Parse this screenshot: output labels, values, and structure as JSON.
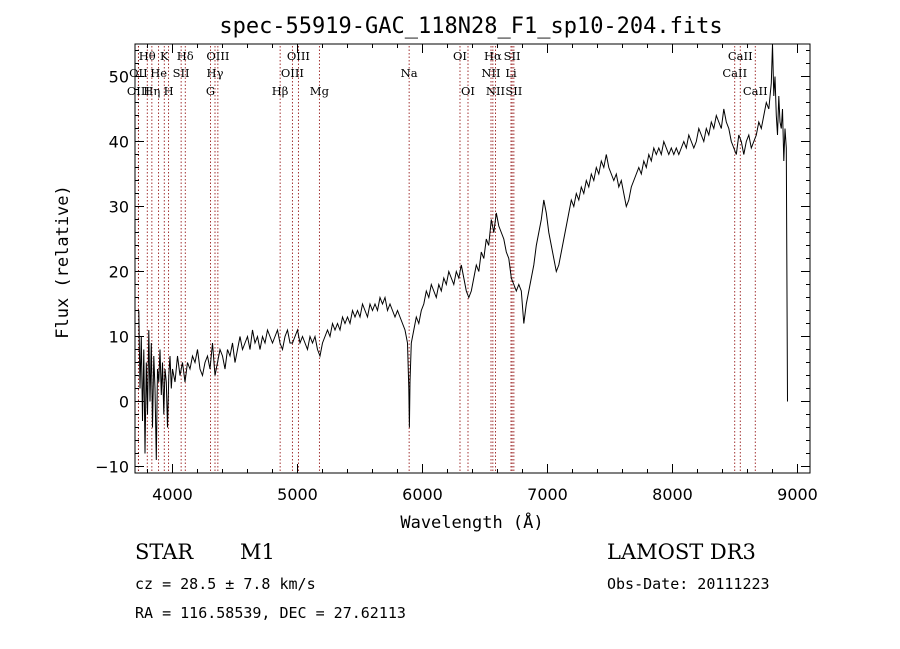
{
  "chart_data": {
    "type": "line",
    "title": "spec-55919-GAC_118N28_F1_sp10-204.fits",
    "xlabel": "Wavelength (Å)",
    "ylabel": "Flux (relative)",
    "xlim": [
      3700,
      9100
    ],
    "ylim": [
      -11,
      55
    ],
    "xticks": [
      4000,
      5000,
      6000,
      7000,
      8000,
      9000
    ],
    "yticks": [
      -10,
      0,
      10,
      20,
      30,
      40,
      50
    ],
    "line_color": "#000000",
    "marker_color": "#8b0000",
    "series": [
      {
        "name": "flux",
        "points": [
          [
            3730,
            14
          ],
          [
            3740,
            2
          ],
          [
            3750,
            10
          ],
          [
            3760,
            -3
          ],
          [
            3770,
            8
          ],
          [
            3780,
            -8
          ],
          [
            3790,
            6
          ],
          [
            3800,
            -2
          ],
          [
            3810,
            11
          ],
          [
            3820,
            0
          ],
          [
            3830,
            9
          ],
          [
            3840,
            -4
          ],
          [
            3850,
            7
          ],
          [
            3860,
            2
          ],
          [
            3870,
            -9
          ],
          [
            3880,
            5
          ],
          [
            3890,
            3
          ],
          [
            3900,
            8
          ],
          [
            3910,
            1
          ],
          [
            3920,
            6
          ],
          [
            3930,
            -2
          ],
          [
            3940,
            5
          ],
          [
            3950,
            3
          ],
          [
            3960,
            -4
          ],
          [
            3970,
            4
          ],
          [
            3980,
            7
          ],
          [
            3990,
            2
          ],
          [
            4000,
            5
          ],
          [
            4020,
            3
          ],
          [
            4040,
            7
          ],
          [
            4060,
            4
          ],
          [
            4080,
            6
          ],
          [
            4100,
            3
          ],
          [
            4120,
            6
          ],
          [
            4140,
            5
          ],
          [
            4160,
            7
          ],
          [
            4180,
            6
          ],
          [
            4200,
            8
          ],
          [
            4220,
            5
          ],
          [
            4240,
            4
          ],
          [
            4260,
            6
          ],
          [
            4280,
            7
          ],
          [
            4300,
            5
          ],
          [
            4320,
            9
          ],
          [
            4340,
            4
          ],
          [
            4360,
            6
          ],
          [
            4380,
            8
          ],
          [
            4400,
            7
          ],
          [
            4420,
            5
          ],
          [
            4440,
            8
          ],
          [
            4460,
            7
          ],
          [
            4480,
            9
          ],
          [
            4500,
            6
          ],
          [
            4520,
            8
          ],
          [
            4540,
            10
          ],
          [
            4560,
            8
          ],
          [
            4580,
            9
          ],
          [
            4600,
            10
          ],
          [
            4620,
            8
          ],
          [
            4640,
            11
          ],
          [
            4660,
            9
          ],
          [
            4680,
            10
          ],
          [
            4700,
            8
          ],
          [
            4720,
            10
          ],
          [
            4740,
            9
          ],
          [
            4760,
            11
          ],
          [
            4780,
            10
          ],
          [
            4800,
            9
          ],
          [
            4820,
            10
          ],
          [
            4840,
            11
          ],
          [
            4860,
            9
          ],
          [
            4880,
            8
          ],
          [
            4900,
            10
          ],
          [
            4920,
            11
          ],
          [
            4940,
            9
          ],
          [
            4960,
            9
          ],
          [
            4980,
            10
          ],
          [
            5000,
            11
          ],
          [
            5020,
            9
          ],
          [
            5040,
            10
          ],
          [
            5060,
            9
          ],
          [
            5080,
            8
          ],
          [
            5100,
            10
          ],
          [
            5120,
            9
          ],
          [
            5140,
            10
          ],
          [
            5160,
            8
          ],
          [
            5180,
            7
          ],
          [
            5200,
            9
          ],
          [
            5220,
            10
          ],
          [
            5240,
            11
          ],
          [
            5260,
            10
          ],
          [
            5280,
            12
          ],
          [
            5300,
            11
          ],
          [
            5320,
            12
          ],
          [
            5340,
            11
          ],
          [
            5360,
            13
          ],
          [
            5380,
            12
          ],
          [
            5400,
            13
          ],
          [
            5420,
            12
          ],
          [
            5440,
            14
          ],
          [
            5460,
            13
          ],
          [
            5480,
            14
          ],
          [
            5500,
            13
          ],
          [
            5520,
            15
          ],
          [
            5540,
            14
          ],
          [
            5560,
            13
          ],
          [
            5580,
            15
          ],
          [
            5600,
            14
          ],
          [
            5620,
            15
          ],
          [
            5640,
            14
          ],
          [
            5660,
            16
          ],
          [
            5680,
            15
          ],
          [
            5700,
            16
          ],
          [
            5720,
            14
          ],
          [
            5740,
            15
          ],
          [
            5760,
            14
          ],
          [
            5780,
            13
          ],
          [
            5800,
            14
          ],
          [
            5820,
            13
          ],
          [
            5840,
            12
          ],
          [
            5860,
            11
          ],
          [
            5880,
            9
          ],
          [
            5890,
            2
          ],
          [
            5895,
            -4
          ],
          [
            5900,
            3
          ],
          [
            5910,
            9
          ],
          [
            5930,
            11
          ],
          [
            5950,
            13
          ],
          [
            5970,
            12
          ],
          [
            5990,
            14
          ],
          [
            6010,
            15
          ],
          [
            6030,
            17
          ],
          [
            6050,
            16
          ],
          [
            6070,
            18
          ],
          [
            6090,
            17
          ],
          [
            6110,
            16
          ],
          [
            6130,
            18
          ],
          [
            6150,
            17
          ],
          [
            6170,
            19
          ],
          [
            6190,
            18
          ],
          [
            6210,
            20
          ],
          [
            6230,
            19
          ],
          [
            6250,
            18
          ],
          [
            6270,
            20
          ],
          [
            6290,
            19
          ],
          [
            6310,
            21
          ],
          [
            6330,
            19
          ],
          [
            6350,
            17
          ],
          [
            6370,
            16
          ],
          [
            6390,
            17
          ],
          [
            6410,
            19
          ],
          [
            6430,
            21
          ],
          [
            6450,
            20
          ],
          [
            6470,
            23
          ],
          [
            6490,
            22
          ],
          [
            6510,
            25
          ],
          [
            6530,
            24
          ],
          [
            6550,
            28
          ],
          [
            6570,
            26
          ],
          [
            6590,
            29
          ],
          [
            6610,
            27
          ],
          [
            6630,
            26
          ],
          [
            6650,
            25
          ],
          [
            6670,
            23
          ],
          [
            6690,
            22
          ],
          [
            6710,
            19
          ],
          [
            6730,
            18
          ],
          [
            6750,
            17
          ],
          [
            6770,
            18
          ],
          [
            6790,
            17
          ],
          [
            6810,
            12
          ],
          [
            6830,
            15
          ],
          [
            6850,
            17
          ],
          [
            6870,
            19
          ],
          [
            6890,
            21
          ],
          [
            6910,
            24
          ],
          [
            6930,
            26
          ],
          [
            6950,
            28
          ],
          [
            6970,
            31
          ],
          [
            6990,
            29
          ],
          [
            7010,
            26
          ],
          [
            7030,
            24
          ],
          [
            7050,
            22
          ],
          [
            7070,
            20
          ],
          [
            7090,
            21
          ],
          [
            7110,
            23
          ],
          [
            7130,
            25
          ],
          [
            7150,
            27
          ],
          [
            7170,
            29
          ],
          [
            7190,
            31
          ],
          [
            7210,
            30
          ],
          [
            7230,
            32
          ],
          [
            7250,
            31
          ],
          [
            7270,
            33
          ],
          [
            7290,
            32
          ],
          [
            7310,
            34
          ],
          [
            7330,
            33
          ],
          [
            7350,
            35
          ],
          [
            7370,
            34
          ],
          [
            7390,
            36
          ],
          [
            7410,
            35
          ],
          [
            7430,
            37
          ],
          [
            7450,
            36
          ],
          [
            7470,
            38
          ],
          [
            7490,
            36
          ],
          [
            7510,
            35
          ],
          [
            7530,
            34
          ],
          [
            7550,
            35
          ],
          [
            7570,
            33
          ],
          [
            7590,
            34
          ],
          [
            7610,
            32
          ],
          [
            7630,
            30
          ],
          [
            7650,
            31
          ],
          [
            7670,
            33
          ],
          [
            7690,
            34
          ],
          [
            7710,
            35
          ],
          [
            7730,
            36
          ],
          [
            7750,
            35
          ],
          [
            7770,
            37
          ],
          [
            7790,
            36
          ],
          [
            7810,
            38
          ],
          [
            7830,
            37
          ],
          [
            7850,
            39
          ],
          [
            7870,
            38
          ],
          [
            7890,
            39
          ],
          [
            7910,
            38
          ],
          [
            7930,
            40
          ],
          [
            7950,
            39
          ],
          [
            7970,
            38
          ],
          [
            7990,
            39
          ],
          [
            8010,
            38
          ],
          [
            8030,
            39
          ],
          [
            8050,
            38
          ],
          [
            8070,
            39
          ],
          [
            8090,
            40
          ],
          [
            8110,
            39
          ],
          [
            8130,
            41
          ],
          [
            8150,
            40
          ],
          [
            8170,
            39
          ],
          [
            8190,
            40
          ],
          [
            8210,
            42
          ],
          [
            8230,
            41
          ],
          [
            8250,
            40
          ],
          [
            8270,
            42
          ],
          [
            8290,
            41
          ],
          [
            8310,
            43
          ],
          [
            8330,
            42
          ],
          [
            8350,
            44
          ],
          [
            8370,
            43
          ],
          [
            8390,
            42
          ],
          [
            8410,
            45
          ],
          [
            8430,
            43
          ],
          [
            8450,
            42
          ],
          [
            8470,
            40
          ],
          [
            8490,
            39
          ],
          [
            8510,
            38
          ],
          [
            8530,
            41
          ],
          [
            8550,
            40
          ],
          [
            8570,
            38
          ],
          [
            8590,
            40
          ],
          [
            8610,
            41
          ],
          [
            8630,
            39
          ],
          [
            8650,
            40
          ],
          [
            8670,
            41
          ],
          [
            8690,
            43
          ],
          [
            8710,
            42
          ],
          [
            8730,
            44
          ],
          [
            8750,
            46
          ],
          [
            8770,
            45
          ],
          [
            8790,
            49
          ],
          [
            8800,
            55
          ],
          [
            8810,
            47
          ],
          [
            8820,
            50
          ],
          [
            8830,
            44
          ],
          [
            8840,
            41
          ],
          [
            8850,
            47
          ],
          [
            8860,
            43
          ],
          [
            8870,
            42
          ],
          [
            8880,
            45
          ],
          [
            8890,
            37
          ],
          [
            8900,
            42
          ],
          [
            8910,
            39
          ],
          [
            8920,
            0
          ]
        ]
      }
    ],
    "spectral_lines": [
      {
        "label": "Hθ",
        "x": 3798,
        "row": 0
      },
      {
        "label": "OII",
        "x": 3727,
        "row": 1
      },
      {
        "label": "OIII",
        "x": 3727,
        "row": 2
      },
      {
        "label": "K",
        "x": 3934,
        "row": 0
      },
      {
        "label": "He",
        "x": 3889,
        "row": 1
      },
      {
        "label": "Hη",
        "x": 3835,
        "row": 2
      },
      {
        "label": "SII",
        "x": 4069,
        "row": 1
      },
      {
        "label": "H",
        "x": 3969,
        "row": 2
      },
      {
        "label": "Hδ",
        "x": 4102,
        "row": 0
      },
      {
        "label": "OIII",
        "x": 4363,
        "row": 0
      },
      {
        "label": "Hγ",
        "x": 4340,
        "row": 1
      },
      {
        "label": "G",
        "x": 4304,
        "row": 2
      },
      {
        "label": "OIII",
        "x": 5007,
        "row": 0
      },
      {
        "label": "OIII",
        "x": 4959,
        "row": 1
      },
      {
        "label": "Hβ",
        "x": 4861,
        "row": 2
      },
      {
        "label": "Mg",
        "x": 5175,
        "row": 2
      },
      {
        "label": "Na",
        "x": 5893,
        "row": 1
      },
      {
        "label": "OI",
        "x": 6300,
        "row": 0
      },
      {
        "label": "OI",
        "x": 6364,
        "row": 2
      },
      {
        "label": "Hα",
        "x": 6563,
        "row": 0
      },
      {
        "label": "NII",
        "x": 6548,
        "row": 1
      },
      {
        "label": "NII",
        "x": 6584,
        "row": 2
      },
      {
        "label": "SII",
        "x": 6717,
        "row": 0
      },
      {
        "label": "Li",
        "x": 6708,
        "row": 1
      },
      {
        "label": "SII",
        "x": 6731,
        "row": 2
      },
      {
        "label": "CaII",
        "x": 8542,
        "row": 0
      },
      {
        "label": "CaII",
        "x": 8498,
        "row": 1
      },
      {
        "label": "CaII",
        "x": 8662,
        "row": 2
      }
    ]
  },
  "info": {
    "class": "STAR",
    "subclass": "M1",
    "survey": "LAMOST DR3",
    "cz": "cz = 28.5 ± 7.8 km/s",
    "obsdate": "Obs-Date: 20111223",
    "radec": "RA = 116.58539, DEC =  27.62113"
  }
}
